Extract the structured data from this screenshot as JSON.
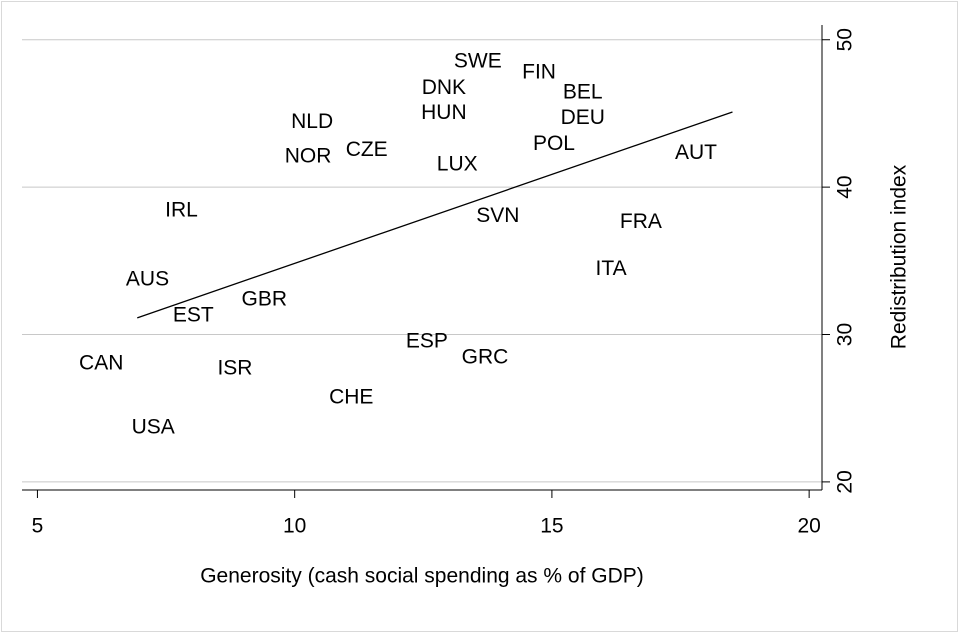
{
  "chart_data": {
    "type": "scatter",
    "x_label": "Generosity (cash social spending as % of GDP)",
    "y_label": "Redistribution index",
    "xlim": [
      4.7,
      20.25
    ],
    "ylim": [
      19.45,
      51
    ],
    "xticks": [
      5,
      10,
      15,
      20
    ],
    "yticks": [
      20,
      30,
      40,
      50
    ],
    "grid": true,
    "color": "#000000",
    "labels": [
      "SWE",
      "FIN",
      "BEL",
      "DNK",
      "HUN",
      "DEU",
      "NLD",
      "POL",
      "NOR",
      "CZE",
      "LUX",
      "AUT",
      "IRL",
      "SVN",
      "FRA",
      "ITA",
      "AUS",
      "GBR",
      "EST",
      "ESP",
      "GRC",
      "CAN",
      "ISR",
      "CHE",
      "USA"
    ],
    "x": [
      13.56,
      14.75,
      15.6,
      12.9,
      12.9,
      15.6,
      10.34,
      15.04,
      10.26,
      11.4,
      13.16,
      17.8,
      7.8,
      13.95,
      16.73,
      16.15,
      7.14,
      9.41,
      8.03,
      12.57,
      13.7,
      6.24,
      8.84,
      11.1,
      7.25
    ],
    "y": [
      48.5,
      47.76,
      46.4,
      46.7,
      45.0,
      44.65,
      44.4,
      42.9,
      42.06,
      42.5,
      41.5,
      42.3,
      38.4,
      38.0,
      37.6,
      34.4,
      33.7,
      32.35,
      31.26,
      29.5,
      28.4,
      28.0,
      27.66,
      25.7,
      23.66
    ],
    "fit_line": {
      "x": [
        6.94,
        18.51
      ],
      "y": [
        31.13,
        45.1
      ]
    }
  }
}
